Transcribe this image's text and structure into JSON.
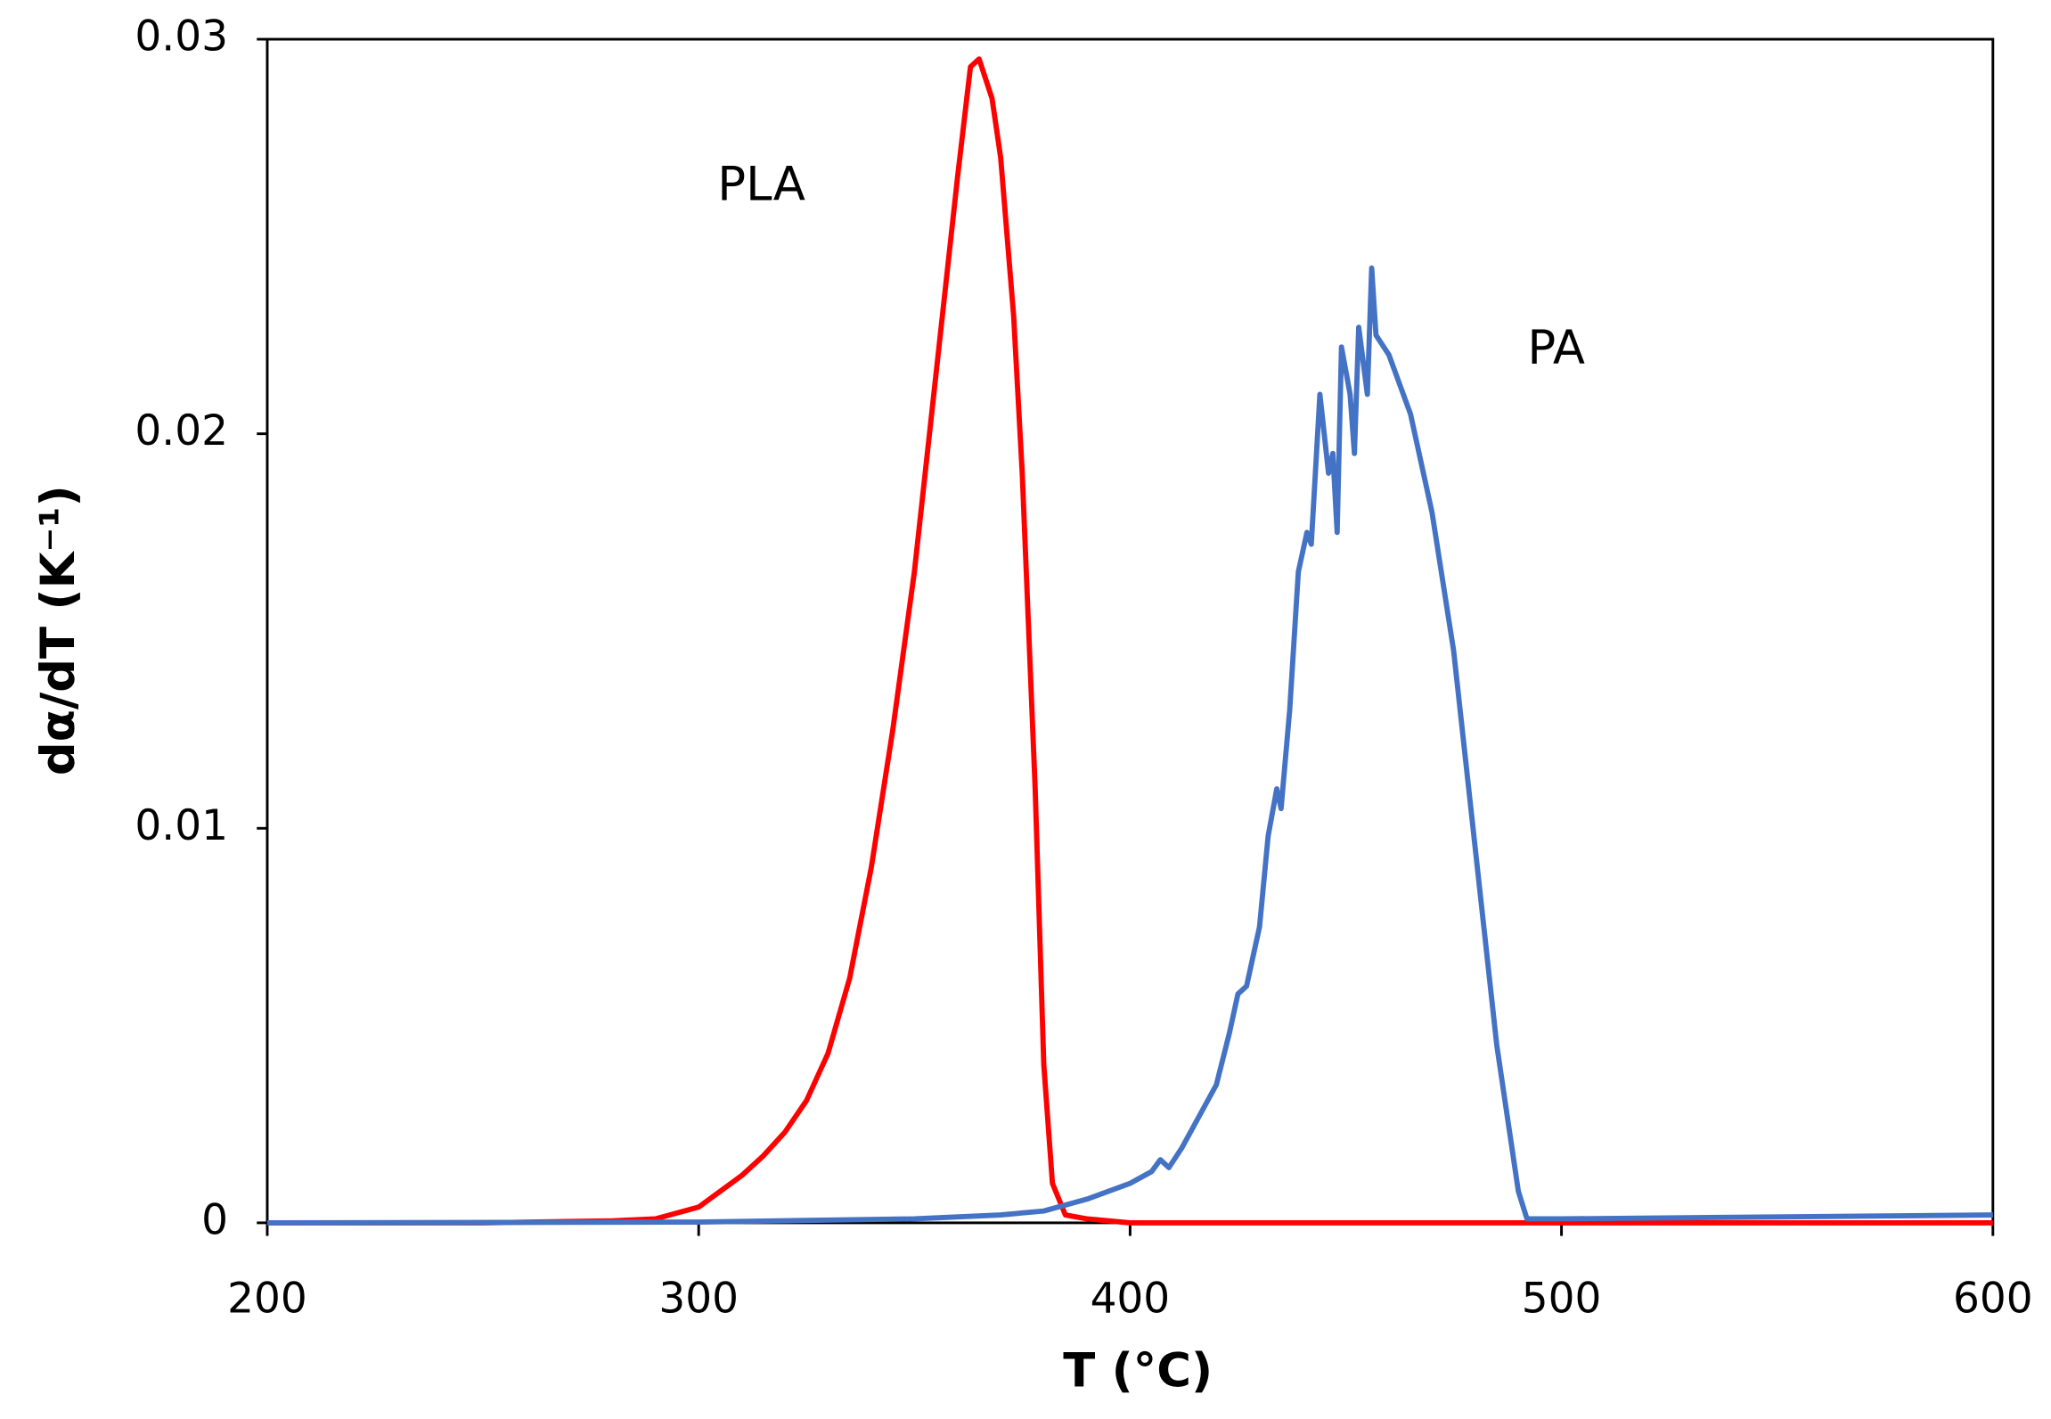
{
  "chart_data": {
    "type": "line",
    "x_label": "T (°C)",
    "y_label": "dα/dT (K⁻¹)",
    "annotations": [
      "PLA",
      "PA"
    ],
    "xlim": [
      200,
      600
    ],
    "xticks": [
      200,
      300,
      400,
      500,
      600
    ],
    "ylim": [
      0,
      0.03
    ],
    "yticks": [
      0,
      0.01,
      0.02,
      0.03
    ],
    "grid": false,
    "series": [
      {
        "name": "PLA",
        "color": "#ff0000",
        "x": [
          200,
          250,
          280,
          290,
          300,
          305,
          310,
          315,
          320,
          325,
          330,
          335,
          340,
          345,
          350,
          355,
          360,
          363,
          365,
          368,
          370,
          373,
          375,
          378,
          380,
          382,
          385,
          390,
          400,
          500,
          600
        ],
        "values": [
          0,
          0,
          5e-05,
          0.0001,
          0.0004,
          0.0008,
          0.0012,
          0.0017,
          0.0023,
          0.0031,
          0.0043,
          0.0062,
          0.009,
          0.0125,
          0.0165,
          0.0215,
          0.0265,
          0.0293,
          0.0295,
          0.0285,
          0.027,
          0.023,
          0.019,
          0.011,
          0.004,
          0.001,
          0.0002,
          0.0001,
          0,
          0,
          0
        ]
      },
      {
        "name": "PA",
        "color": "#4472c4",
        "x": [
          200,
          300,
          350,
          370,
          380,
          390,
          400,
          405,
          407,
          409,
          412,
          415,
          420,
          423,
          425,
          427,
          430,
          432,
          434,
          435,
          437,
          439,
          441,
          442,
          444,
          446,
          447,
          448,
          449,
          451,
          452,
          453,
          455,
          456,
          457,
          460,
          465,
          470,
          475,
          480,
          485,
          490,
          492,
          500,
          600
        ],
        "values": [
          0,
          2e-05,
          0.0001,
          0.0002,
          0.0003,
          0.0006,
          0.001,
          0.0013,
          0.0016,
          0.0014,
          0.0019,
          0.0025,
          0.0035,
          0.0048,
          0.0058,
          0.006,
          0.0075,
          0.0098,
          0.011,
          0.0105,
          0.013,
          0.0165,
          0.0175,
          0.0172,
          0.021,
          0.019,
          0.0195,
          0.0175,
          0.0222,
          0.021,
          0.0195,
          0.0227,
          0.021,
          0.0242,
          0.0225,
          0.022,
          0.0205,
          0.018,
          0.0145,
          0.0095,
          0.0045,
          0.0008,
          0.0001,
          0.0001,
          0.0002
        ]
      }
    ]
  }
}
